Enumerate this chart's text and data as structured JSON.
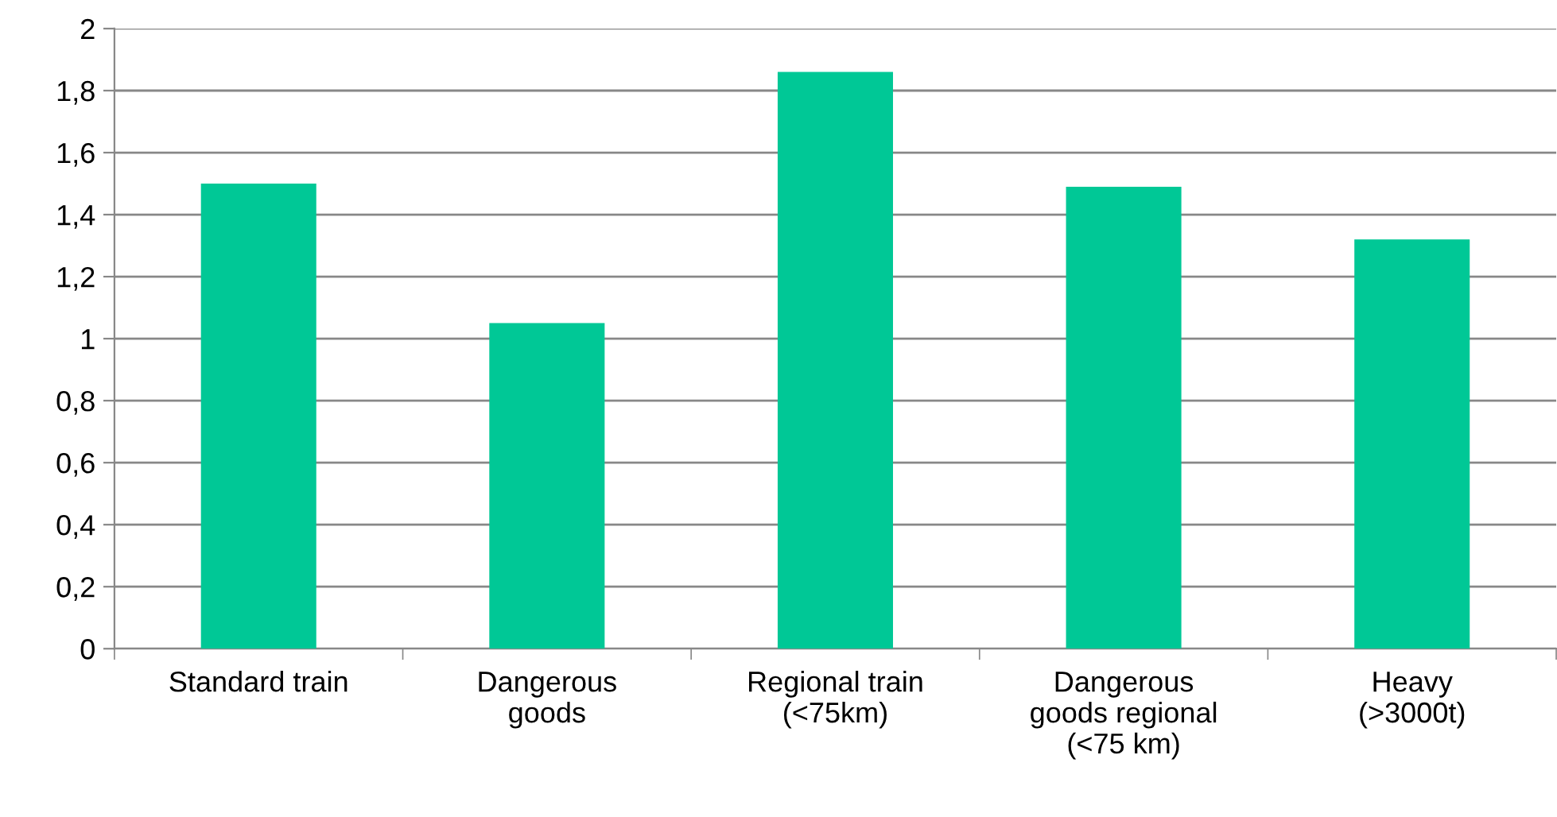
{
  "chart_data": {
    "type": "bar",
    "categories": [
      "Standard train",
      "Dangerous\ngoods",
      "Regional train\n(<75km)",
      "Dangerous\ngoods regional\n(<75 km)",
      "Heavy\n(>3000t)"
    ],
    "values": [
      1.5,
      1.05,
      1.86,
      1.49,
      1.32
    ],
    "color": "#00c896",
    "ylim": [
      0,
      2
    ],
    "yticks": [
      0,
      {
        "value": 0.2,
        "label": "0,2"
      },
      {
        "value": 0.4,
        "label": "0,4"
      },
      {
        "value": 0.6,
        "label": "0,6"
      },
      {
        "value": 0.8,
        "label": "0,8"
      },
      1,
      {
        "value": 1.2,
        "label": "1,2"
      },
      {
        "value": 1.4,
        "label": "1,4"
      },
      {
        "value": 1.6,
        "label": "1,6"
      },
      {
        "value": 1.8,
        "label": "1,8"
      },
      2
    ],
    "grid": "y",
    "legend": false
  }
}
